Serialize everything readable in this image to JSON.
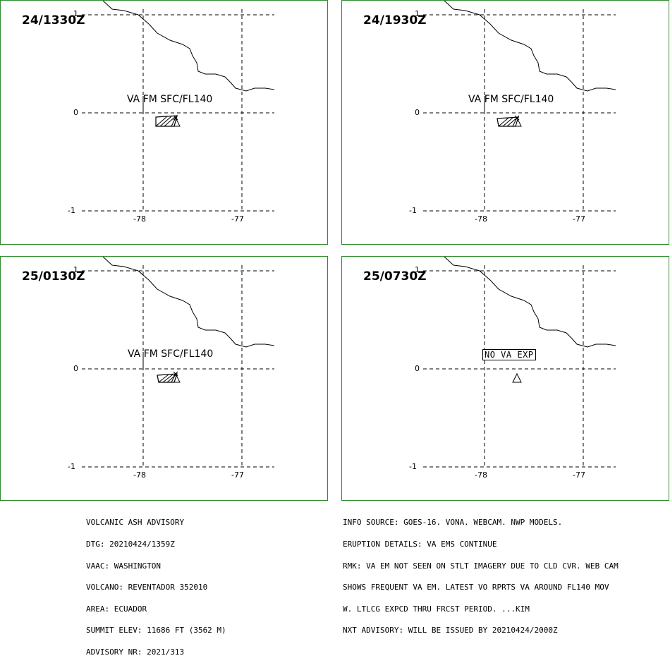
{
  "panels": [
    {
      "time": "24/1330Z",
      "va_text": "VA FM SFC/FL140",
      "ash": true
    },
    {
      "time": "24/1930Z",
      "va_text": "VA FM SFC/FL140",
      "ash": true
    },
    {
      "time": "25/0130Z",
      "va_text": "VA FM SFC/FL140",
      "ash": true
    },
    {
      "time": "25/0730Z",
      "va_text": "NO VA EXP",
      "ash": false
    }
  ],
  "axes": {
    "lon_left": "-78",
    "lon_right": "-77",
    "lat_top": "1",
    "lat_mid": "0",
    "lat_bot": "-1"
  },
  "advisory_left": [
    "VOLCANIC ASH ADVISORY",
    "DTG: 20210424/1359Z",
    "VAAC: WASHINGTON",
    "VOLCANO: REVENTADOR 352010",
    "AREA: ECUADOR",
    "SUMMIT ELEV: 11686 FT (3562 M)",
    "ADVISORY NR: 2021/313"
  ],
  "advisory_right": [
    "INFO SOURCE: GOES-16. VONA. WEBCAM. NWP MODELS.",
    "ERUPTION DETAILS: VA EMS CONTINUE",
    "RMK: VA EM NOT SEEN ON STLT IMAGERY DUE TO CLD CVR. WEB CAM",
    "SHOWS FREQUENT VA EM. LATEST VO RPRTS VA AROUND FL140 MOV",
    "W. LTLCG EXPCD THRU FRCST PERIOD. ...KIM",
    "NXT ADVISORY: WILL BE ISSUED BY 20210424/2000Z"
  ],
  "colors": {
    "border": "#2e8b2e",
    "lines": "#000000"
  },
  "icons": [
    "volcano-icon",
    "ash-cloud-polygon"
  ]
}
